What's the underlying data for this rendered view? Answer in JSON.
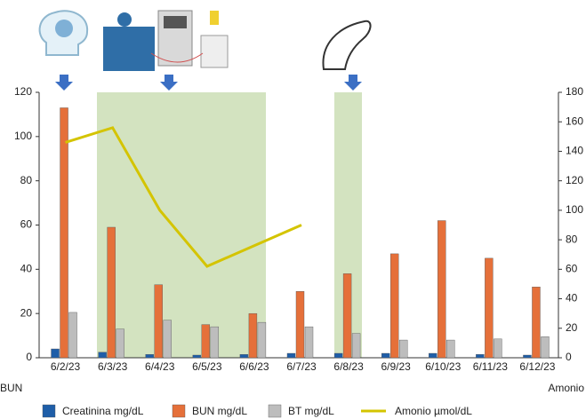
{
  "chart_data": {
    "type": "bar",
    "categories": [
      "6/2/23",
      "6/3/23",
      "6/4/23",
      "6/5/23",
      "6/6/23",
      "6/7/23",
      "6/8/23",
      "6/9/23",
      "6/10/23",
      "6/11/23",
      "6/12/23"
    ],
    "series": [
      {
        "name": "Creatinina mg/dL",
        "color": "#1f5ea8",
        "type": "bar",
        "values": [
          4,
          2.5,
          1.5,
          1.2,
          1.5,
          2,
          2,
          2,
          2,
          1.5,
          1.2
        ]
      },
      {
        "name": "BUN mg/dL",
        "color": "#e5703a",
        "type": "bar",
        "values": [
          113,
          59,
          33,
          15,
          20,
          30,
          38,
          47,
          62,
          45,
          32
        ]
      },
      {
        "name": "BT mg/dL",
        "color": "#bdbdbd",
        "type": "bar",
        "values": [
          20.5,
          13,
          17,
          14,
          16,
          14,
          11,
          8,
          8,
          8.5,
          9.5
        ]
      },
      {
        "name": "Amonio µmol/dL",
        "color": "#d4c400",
        "type": "line",
        "axis": "y2",
        "values": [
          146,
          156,
          100,
          62,
          76,
          90,
          null,
          null,
          null,
          null,
          null
        ]
      }
    ],
    "y_label": "BUN",
    "y2_label": "Amonio",
    "ylim": [
      0,
      120
    ],
    "yticks": [
      0,
      20,
      40,
      60,
      80,
      100,
      120
    ],
    "y2lim": [
      0,
      180
    ],
    "y2ticks": [
      0,
      20,
      40,
      60,
      80,
      100,
      120,
      140,
      160,
      180
    ]
  }
}
